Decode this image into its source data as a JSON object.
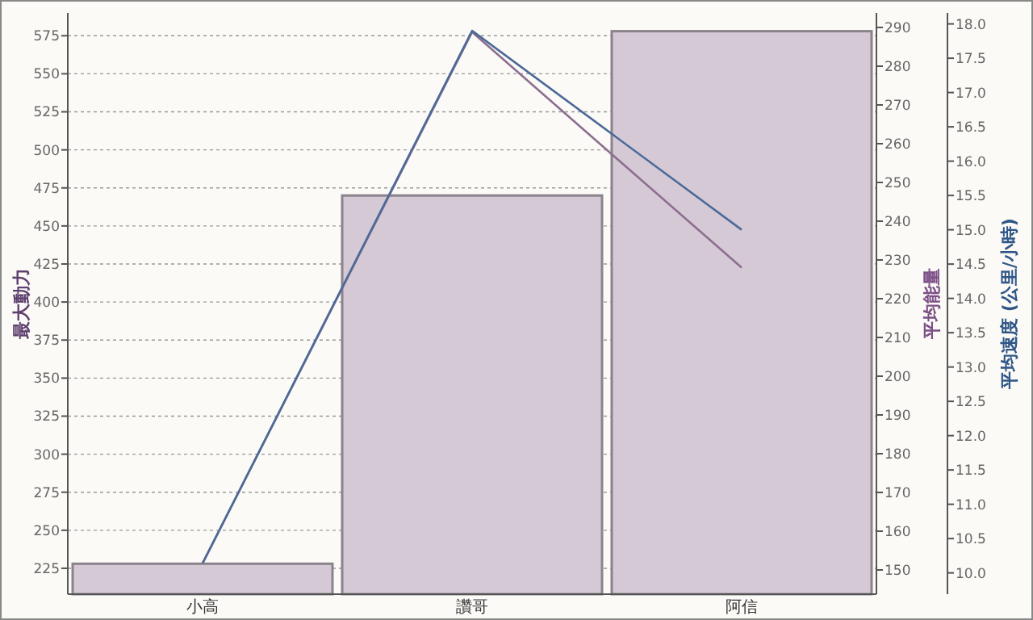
{
  "chart_data": {
    "type": "bar",
    "ylabel": "最大動力",
    "y2label": "平均能量",
    "y3label": "平均速度 (公里/小時)",
    "categories": [
      "小高",
      "讚哥",
      "阿信"
    ],
    "series": [
      {
        "color": "#d5c9d6",
        "values": [
          228,
          470,
          578
        ]
      },
      {
        "type": "line",
        "axis": "y2",
        "color": "#8c6f8e",
        "values": [
          151.7,
          288.8,
          228
        ]
      },
      {
        "type": "line",
        "axis": "y3",
        "color": "#4c6a98",
        "values": [
          10.14,
          17.9,
          15.0
        ]
      }
    ],
    "ylim": [
      208,
      590
    ],
    "yticks": [
      225,
      250,
      275,
      300,
      325,
      350,
      375,
      400,
      425,
      450,
      475,
      500,
      525,
      550,
      575
    ],
    "y2lim": [
      143.75,
      293.75
    ],
    "y2ticks": [
      150,
      160,
      170,
      180,
      190,
      200,
      210,
      220,
      230,
      240,
      250,
      260,
      270,
      280,
      290
    ],
    "y3lim": [
      9.69,
      18.16
    ],
    "y3ticks": [
      {
        "value": 10,
        "label": "10.0"
      },
      {
        "value": 10.5,
        "label": "10.5"
      },
      {
        "value": 11,
        "label": "11.0"
      },
      {
        "value": 11.5,
        "label": "11.5"
      },
      {
        "value": 12,
        "label": "12.0"
      },
      {
        "value": 12.5,
        "label": "12.5"
      },
      {
        "value": 13,
        "label": "13.0"
      },
      {
        "value": 13.5,
        "label": "13.5"
      },
      {
        "value": 14,
        "label": "14.0"
      },
      {
        "value": 14.5,
        "label": "14.5"
      },
      {
        "value": 15,
        "label": "15.0"
      },
      {
        "value": 15.5,
        "label": "15.5"
      },
      {
        "value": 16,
        "label": "16.0"
      },
      {
        "value": 16.5,
        "label": "16.5"
      },
      {
        "value": 17,
        "label": "17.0"
      },
      {
        "value": 17.5,
        "label": "17.5"
      },
      {
        "value": 18,
        "label": "18.0"
      }
    ],
    "grid": "y",
    "marker": "none",
    "line_style": "solid"
  }
}
